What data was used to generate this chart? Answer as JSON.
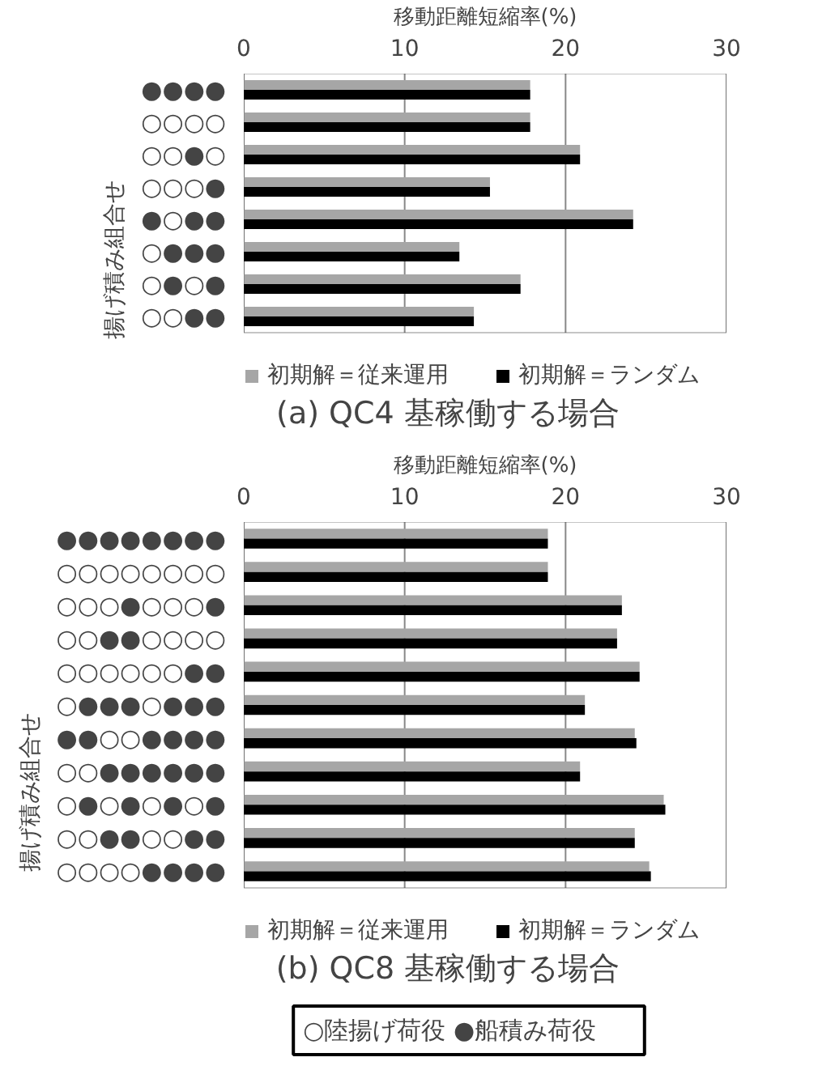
{
  "chart_data": [
    {
      "type": "bar",
      "orientation": "horizontal",
      "title": "(a)  QC4 基稼働する場合",
      "xlabel": "移動距離短縮率(%)",
      "ylabel": "揚げ積み組合せ",
      "categories": [
        "●●●●",
        "○○○○",
        "○○●○",
        "○○○●",
        "●○●●",
        "○●●●",
        "○●○●",
        "○○●●"
      ],
      "series": [
        {
          "name": "初期解＝従来運用",
          "color": "#a6a6a6",
          "values": [
            17.8,
            17.8,
            20.9,
            15.3,
            24.2,
            13.4,
            17.2,
            14.3
          ]
        },
        {
          "name": "初期解＝ランダム",
          "color": "#000000",
          "values": [
            17.8,
            17.8,
            20.9,
            15.3,
            24.2,
            13.4,
            17.2,
            14.3
          ]
        }
      ],
      "xlim": [
        0,
        30
      ],
      "xticks": [
        0,
        10,
        20,
        30
      ],
      "grid": "x",
      "legend": "bottom"
    },
    {
      "type": "bar",
      "orientation": "horizontal",
      "title": "(b)  QC8 基稼働する場合",
      "xlabel": "移動距離短縮率(%)",
      "ylabel": "揚げ積み組合せ",
      "categories": [
        "●●●●●●●●",
        "○○○○○○○○",
        "○○○●○○○●",
        "○○●●○○○○",
        "○○○○○○●●",
        "○●●●○●●●",
        "●●○○●●●●",
        "○○●●●●●●",
        "○●○●○●○●",
        "○○●●○○●●",
        "○○○○●●●●"
      ],
      "series": [
        {
          "name": "初期解＝従来運用",
          "color": "#a6a6a6",
          "values": [
            18.9,
            18.9,
            23.5,
            23.2,
            24.6,
            21.2,
            24.3,
            20.9,
            26.1,
            24.3,
            25.2
          ]
        },
        {
          "name": "初期解＝ランダム",
          "color": "#000000",
          "values": [
            18.9,
            18.9,
            23.5,
            23.2,
            24.6,
            21.2,
            24.4,
            20.9,
            26.2,
            24.3,
            25.3
          ]
        }
      ],
      "xlim": [
        0,
        30
      ],
      "xticks": [
        0,
        10,
        20,
        30
      ],
      "grid": "x",
      "legend": "bottom",
      "annotations": [
        "○陸揚げ荷役",
        "●船積み荷役"
      ]
    }
  ]
}
